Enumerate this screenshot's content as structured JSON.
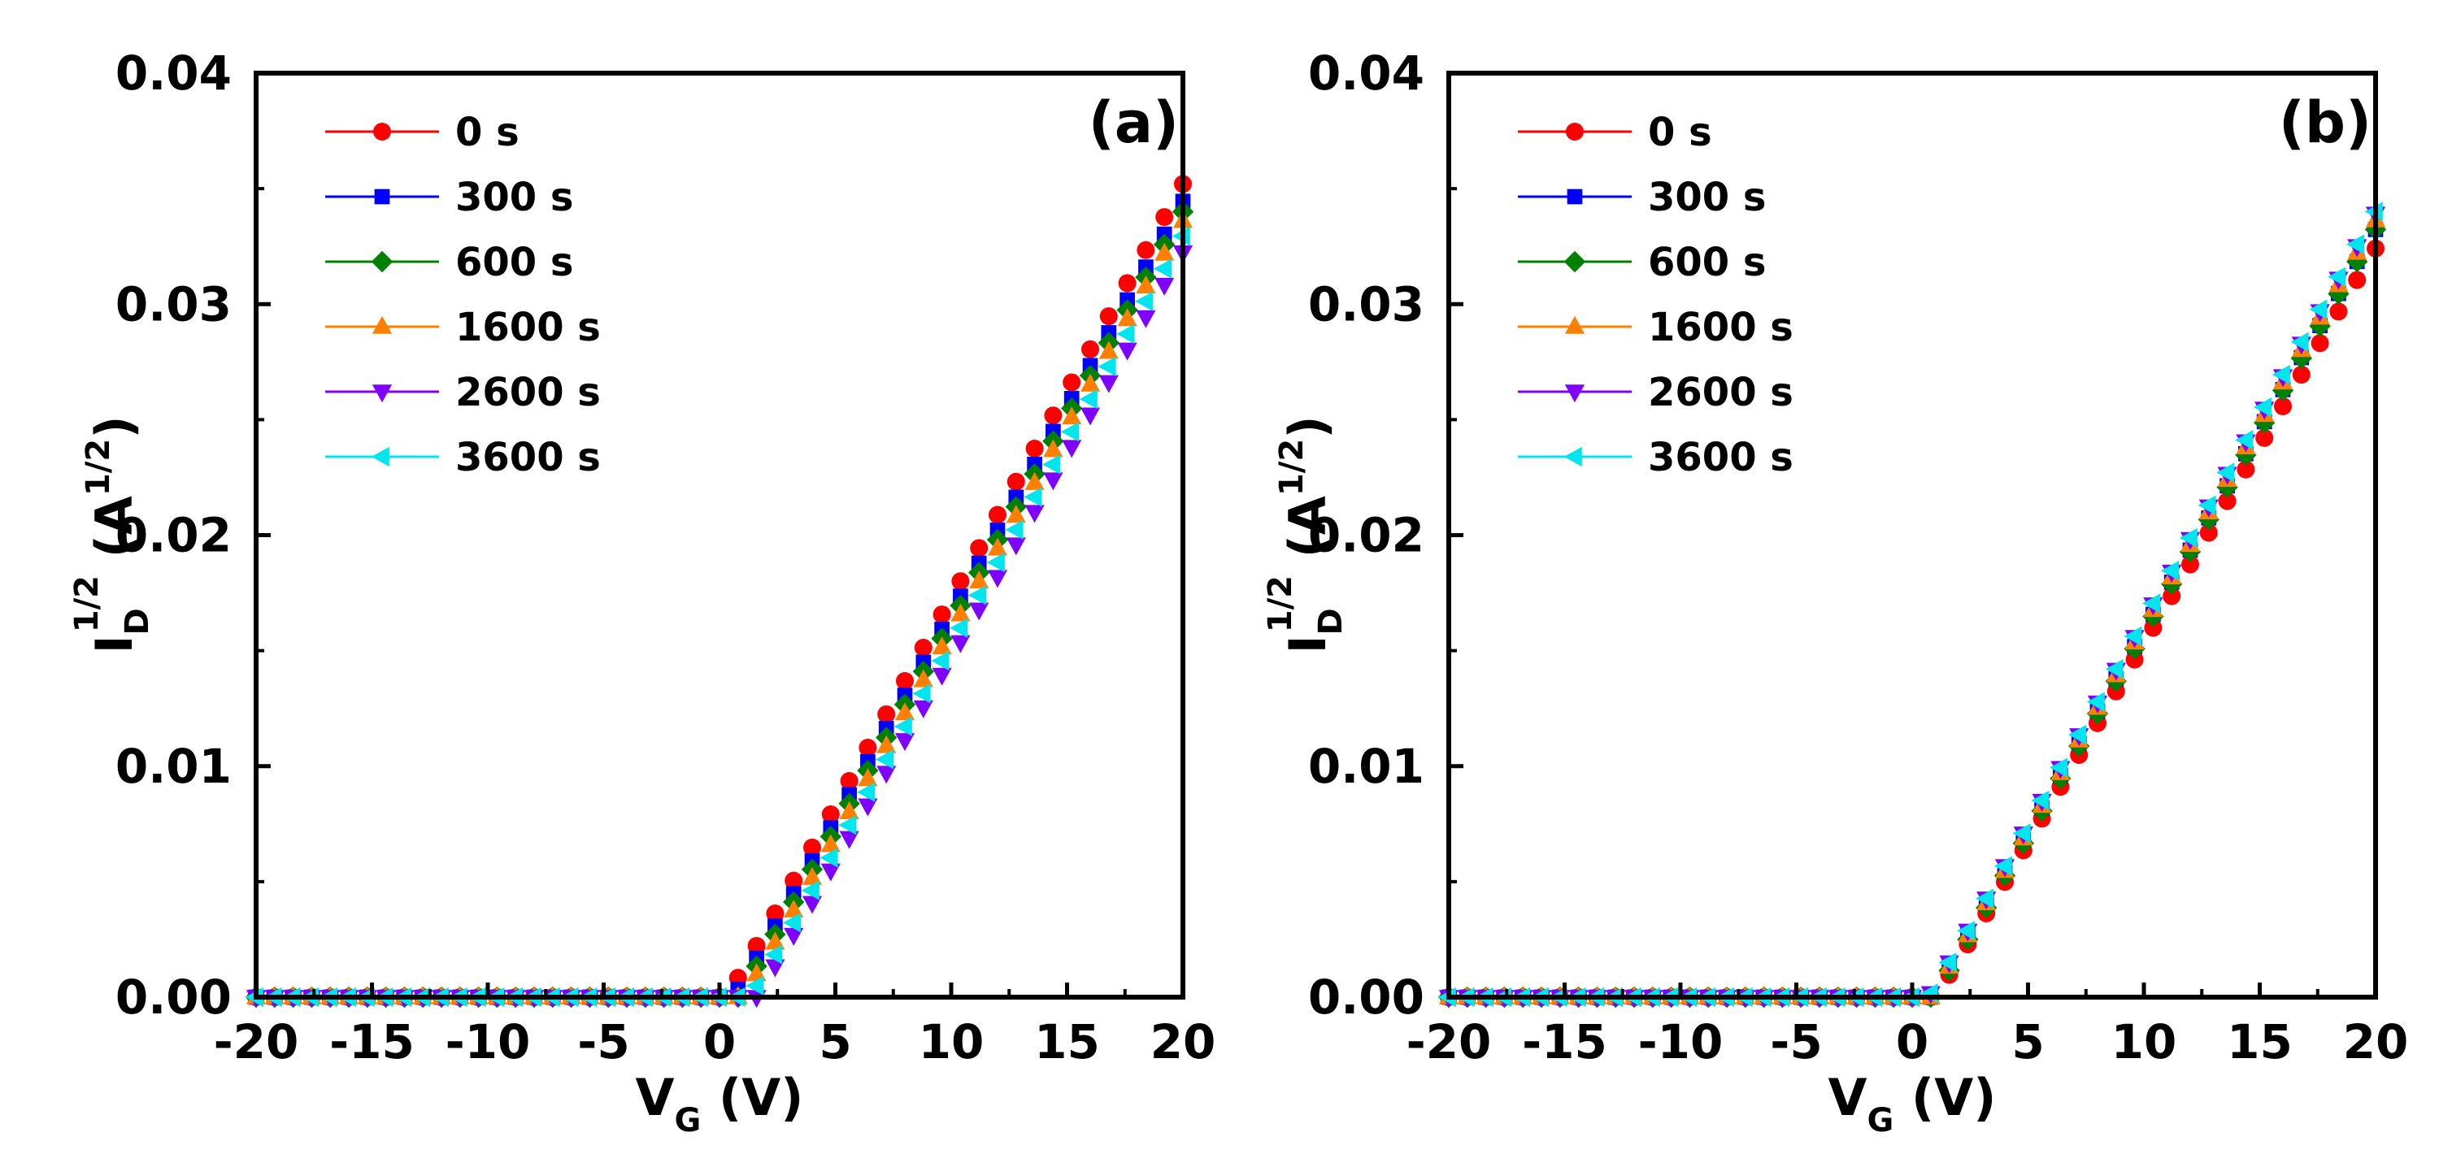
{
  "chart_data": [
    {
      "type": "scatter",
      "panel_label": "(a)",
      "xlabel": "V_G (V)",
      "ylabel": "I_D^1/2 (A^1/2)",
      "xlabel_parts": {
        "main": "V",
        "sub": "G",
        "unit": " (V)"
      },
      "ylabel_parts": {
        "main": "I",
        "sub": "D",
        "sup": "1/2",
        "unit_open": " (A",
        "unit_sup": "1/2",
        "unit_close": ")"
      },
      "xlim": [
        -20,
        20
      ],
      "ylim": [
        0,
        0.04
      ],
      "xticks": [
        -20,
        -15,
        -10,
        -5,
        0,
        5,
        10,
        15,
        20
      ],
      "xtick_labels": [
        "-20",
        "-15",
        "-10",
        "-5",
        "0",
        "5",
        "10",
        "15",
        "20"
      ],
      "yticks": [
        0,
        0.01,
        0.02,
        0.03,
        0.04
      ],
      "ytick_labels": [
        "0.00",
        "0.01",
        "0.02",
        "0.03",
        "0.04"
      ],
      "legend_position": "top-left",
      "grid": false,
      "x_start": -20,
      "x_step": 0.8,
      "series": [
        {
          "name": "0 s",
          "color": "#ff0000",
          "marker": "circle",
          "vth": 0.3,
          "k": 0.001787
        },
        {
          "name": "300 s",
          "color": "#0000ff",
          "marker": "square",
          "vth": 0.6,
          "k": 0.001776
        },
        {
          "name": "600 s",
          "color": "#008000",
          "marker": "diamond",
          "vth": 0.8,
          "k": 0.001771
        },
        {
          "name": "1600 s",
          "color": "#ff8000",
          "marker": "triangle-up",
          "vth": 1.0,
          "k": 0.001769
        },
        {
          "name": "2600 s",
          "color": "#8000ff",
          "marker": "triangle-down",
          "vth": 1.6,
          "k": 0.001752
        },
        {
          "name": "3600 s",
          "color": "#00e5ee",
          "marker": "triangle-left",
          "vth": 1.3,
          "k": 0.001762
        }
      ]
    },
    {
      "type": "scatter",
      "panel_label": "(b)",
      "xlabel": "V_G (V)",
      "ylabel": "I_D^1/2 (A^1/2)",
      "xlabel_parts": {
        "main": "V",
        "sub": "G",
        "unit": " (V)"
      },
      "ylabel_parts": {
        "main": "I",
        "sub": "D",
        "sup": "1/2",
        "unit_open": " (A",
        "unit_sup": "1/2",
        "unit_close": ")"
      },
      "xlim": [
        -20,
        20
      ],
      "ylim": [
        0,
        0.04
      ],
      "xticks": [
        -20,
        -15,
        -10,
        -5,
        0,
        5,
        10,
        15,
        20
      ],
      "xtick_labels": [
        "-20",
        "-15",
        "-10",
        "-5",
        "0",
        "5",
        "10",
        "15",
        "20"
      ],
      "yticks": [
        0,
        0.01,
        0.02,
        0.03,
        0.04
      ],
      "ytick_labels": [
        "0.00",
        "0.01",
        "0.02",
        "0.03",
        "0.04"
      ],
      "legend_position": "top-left",
      "grid": false,
      "x_start": -20,
      "x_step": 0.8,
      "series": [
        {
          "name": "0 s",
          "color": "#ff0000",
          "marker": "circle",
          "vth": 1.0,
          "k": 0.001706
        },
        {
          "name": "300 s",
          "color": "#0000ff",
          "marker": "square",
          "vth": 0.8,
          "k": 0.001731
        },
        {
          "name": "600 s",
          "color": "#008000",
          "marker": "diamond",
          "vth": 0.9,
          "k": 0.00174
        },
        {
          "name": "1600 s",
          "color": "#ff8000",
          "marker": "triangle-up",
          "vth": 0.8,
          "k": 0.001752
        },
        {
          "name": "2600 s",
          "color": "#8000ff",
          "marker": "triangle-down",
          "vth": 0.7,
          "k": 0.001757
        },
        {
          "name": "3600 s",
          "color": "#00e5ee",
          "marker": "triangle-left",
          "vth": 0.7,
          "k": 0.001762
        }
      ]
    }
  ]
}
